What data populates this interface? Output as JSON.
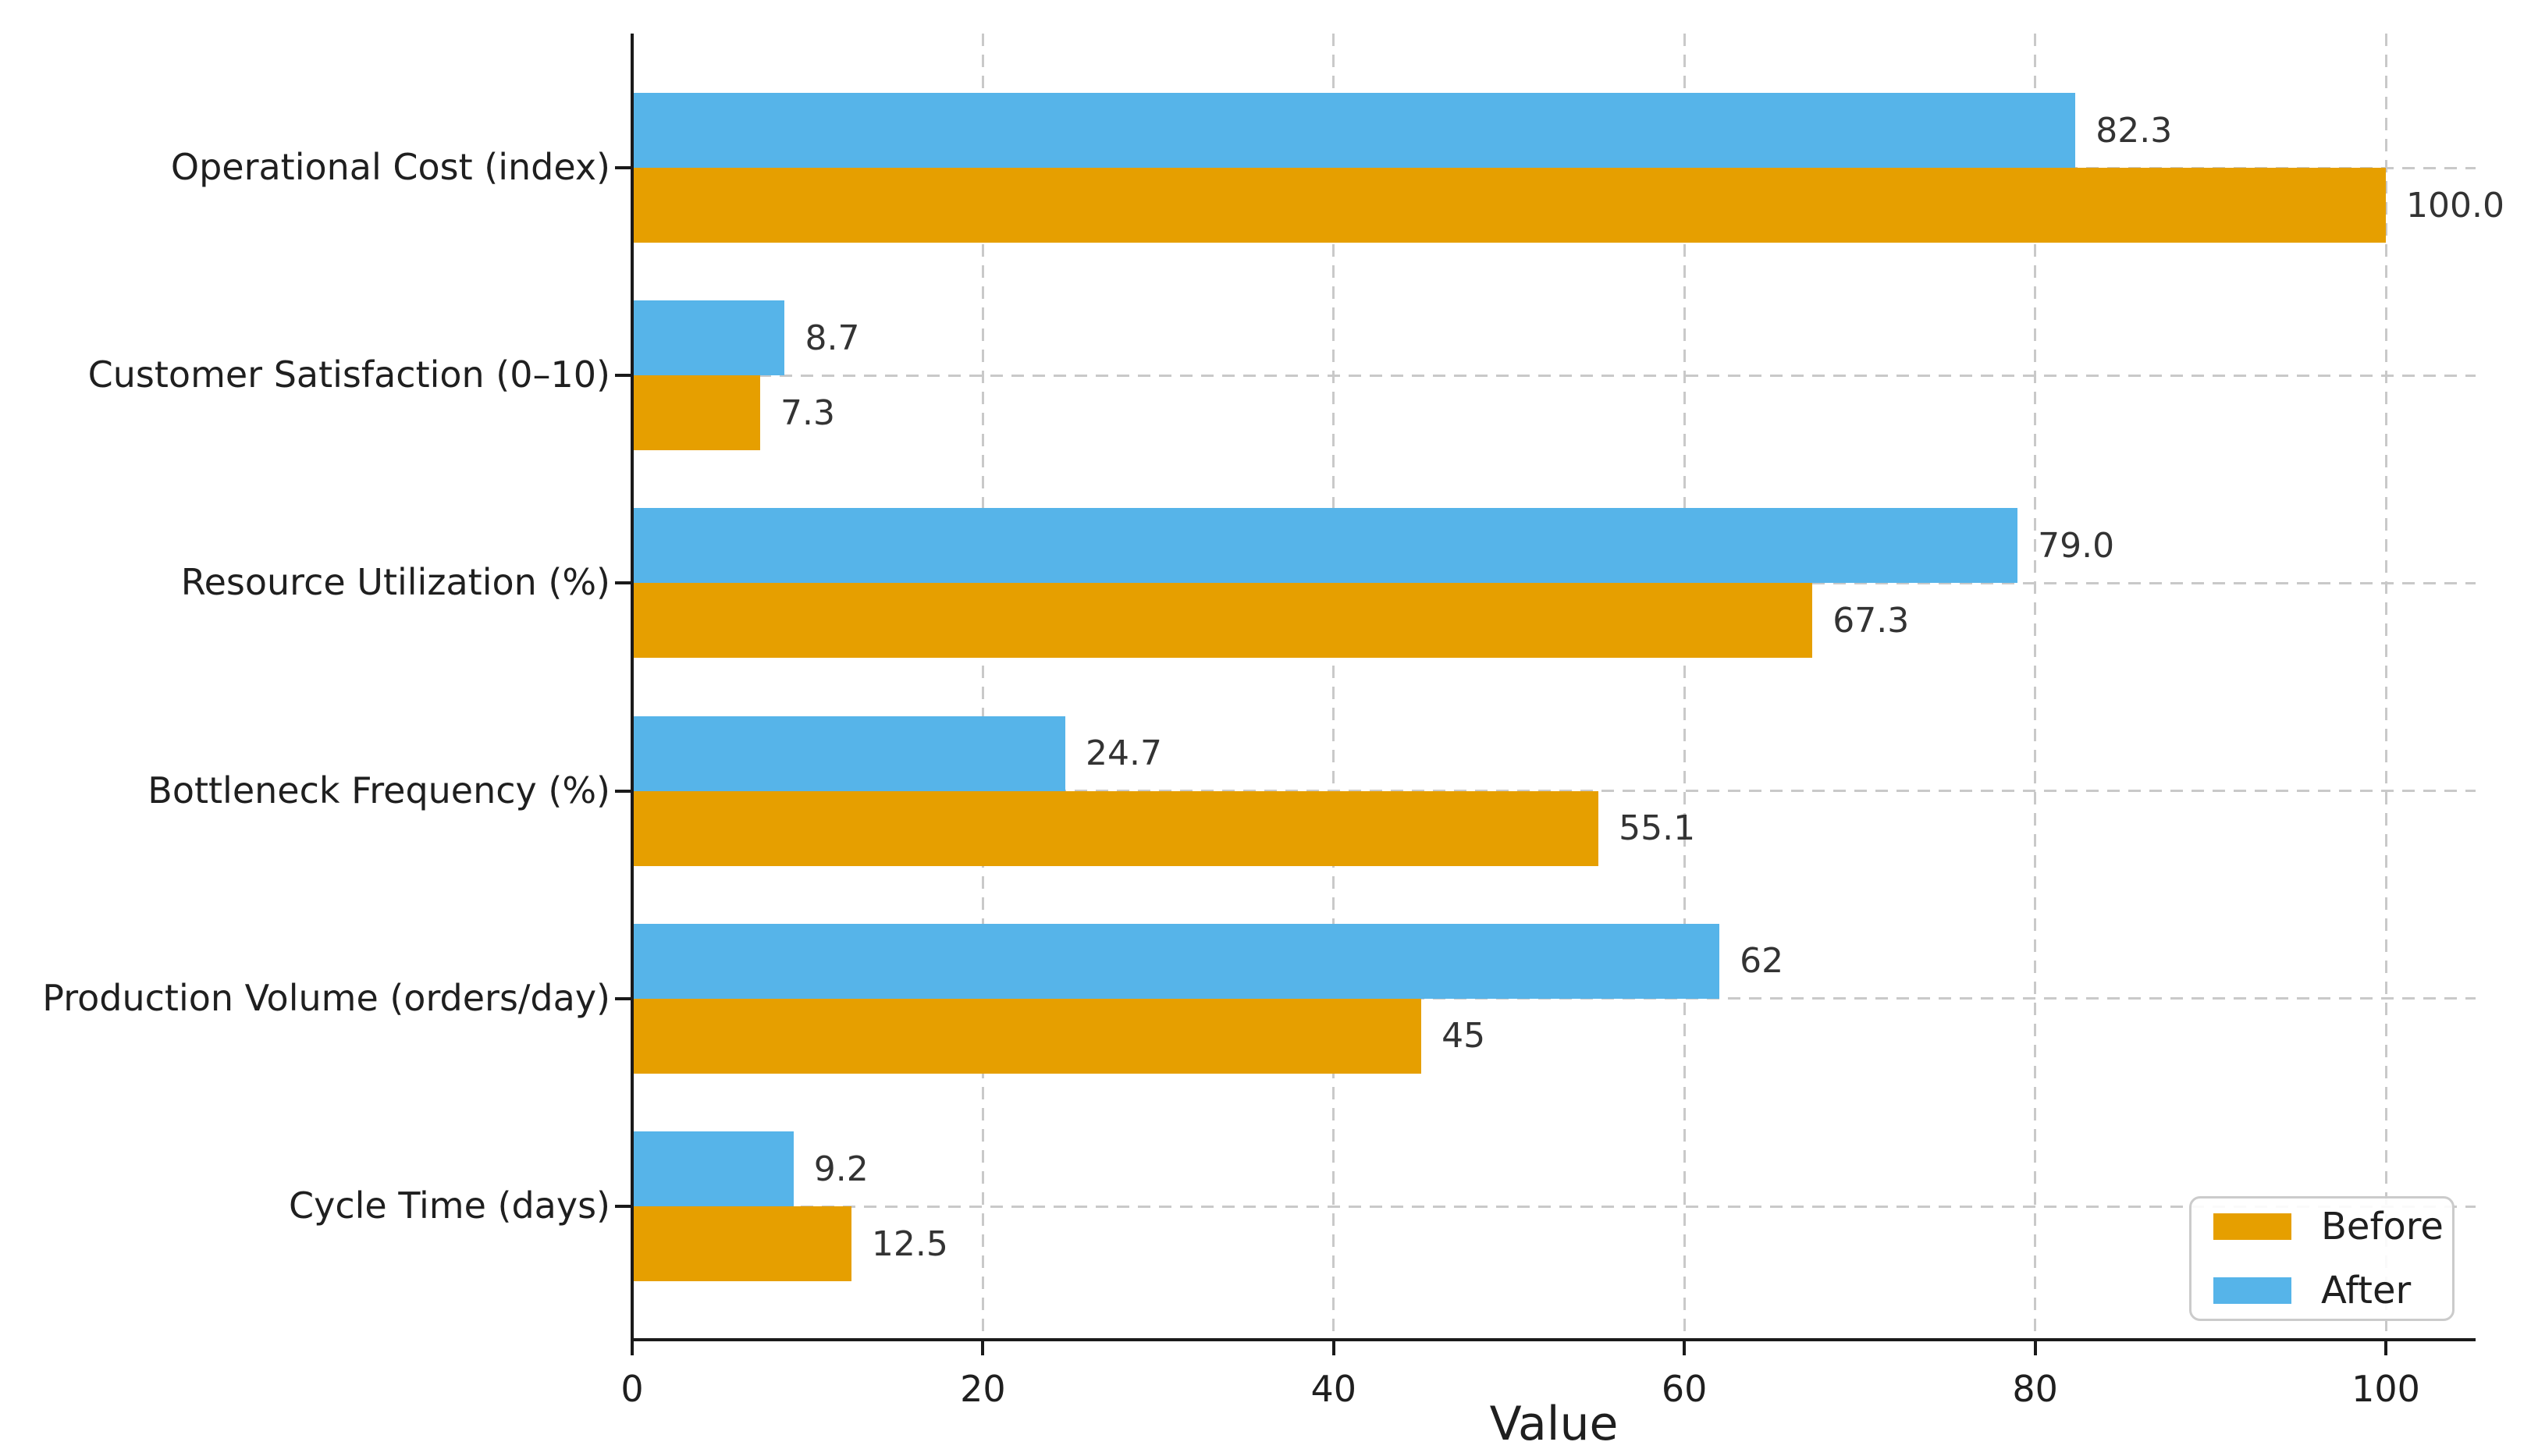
{
  "chart_data": {
    "type": "bar",
    "orientation": "horizontal",
    "title": "",
    "xlabel": "Value",
    "ylabel": "",
    "xlim": [
      0,
      105
    ],
    "xticks": [
      0,
      20,
      40,
      60,
      80,
      100
    ],
    "xtick_labels": [
      "0",
      "20",
      "40",
      "60",
      "80",
      "100"
    ],
    "grid": "dashed",
    "legend_position": "lower right",
    "bar_order_top_to_bottom_within_group": [
      "After",
      "Before"
    ],
    "categories": [
      "Operational Cost (index)",
      "Customer Satisfaction (0–10)",
      "Resource Utilization (%)",
      "Bottleneck Frequency (%)",
      "Production Volume (orders/day)",
      "Cycle Time (days)"
    ],
    "series": [
      {
        "name": "Before",
        "color": "#E69F00",
        "values": [
          100.0,
          7.3,
          67.3,
          55.1,
          45,
          12.5
        ],
        "labels": [
          "100.0",
          "7.3",
          "67.3",
          "55.1",
          "45",
          "12.5"
        ]
      },
      {
        "name": "After",
        "color": "#56B4E9",
        "values": [
          82.3,
          8.7,
          79.0,
          24.7,
          62,
          9.2
        ],
        "labels": [
          "82.3",
          "8.7",
          "79.0",
          "24.7",
          "62",
          "9.2"
        ]
      }
    ]
  },
  "colors": {
    "before": "#E69F00",
    "after": "#56B4E9",
    "grid": "#c9c9c9",
    "axis": "#1a1a1a",
    "text": "#1f1f1f",
    "value_label": "#333333",
    "legend_border": "#cbcbcb",
    "background": "#ffffff"
  }
}
